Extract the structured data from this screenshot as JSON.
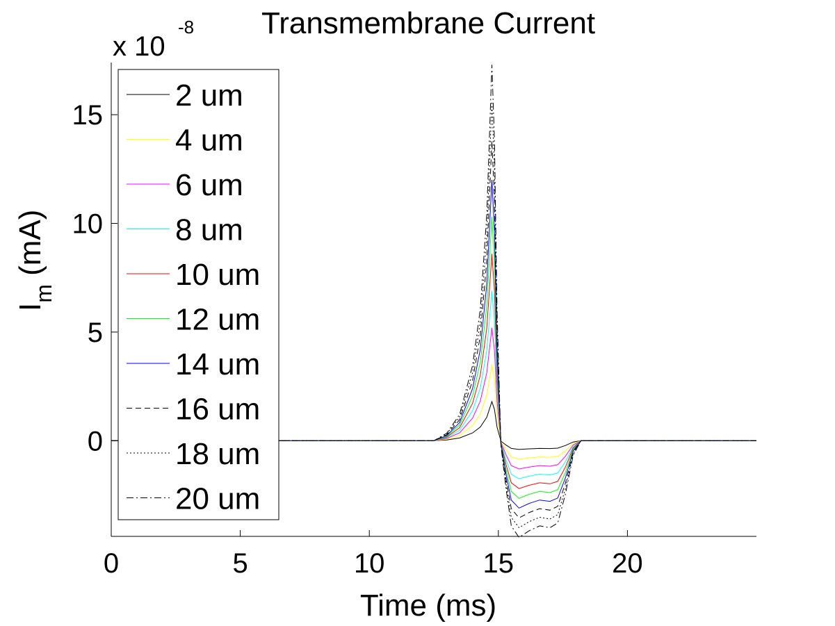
{
  "chart_data": {
    "type": "line",
    "title": "Transmembrane Current",
    "xlabel": "Time (ms)",
    "ylabel_main": "I",
    "ylabel_sub": "m",
    "ylabel_unit": " (mA)",
    "y_multiplier_base": "x 10",
    "y_multiplier_exp": "-8",
    "xlim": [
      0,
      25
    ],
    "ylim": [
      -4.4,
      17.4
    ],
    "x_ticks": [
      0,
      5,
      10,
      15,
      20
    ],
    "y_ticks": [
      0,
      5,
      10,
      15
    ],
    "grid": false,
    "legend_position": "top-left",
    "series": [
      {
        "name": "2 um",
        "color": "#000000",
        "dash": "",
        "peak": 1.8,
        "trough": -0.4
      },
      {
        "name": "4 um",
        "color": "#ffff00",
        "dash": "",
        "peak": 3.5,
        "trough": -0.85
      },
      {
        "name": "6 um",
        "color": "#ff00ff",
        "dash": "",
        "peak": 5.2,
        "trough": -1.3
      },
      {
        "name": "8 um",
        "color": "#00ffff",
        "dash": "",
        "peak": 6.9,
        "trough": -1.75
      },
      {
        "name": "10 um",
        "color": "#ff0000",
        "dash": "",
        "peak": 8.6,
        "trough": -2.2
      },
      {
        "name": "12 um",
        "color": "#00ff00",
        "dash": "",
        "peak": 10.3,
        "trough": -2.65
      },
      {
        "name": "14 um",
        "color": "#0000ff",
        "dash": "",
        "peak": 12.0,
        "trough": -3.1
      },
      {
        "name": "16 um",
        "color": "#000000",
        "dash": "8,5",
        "peak": 13.8,
        "trough": -3.55
      },
      {
        "name": "18 um",
        "color": "#000000",
        "dash": "2,3",
        "peak": 15.6,
        "trough": -4.0
      },
      {
        "name": "20 um",
        "color": "#000000",
        "dash": "10,4,2,4",
        "peak": 17.3,
        "trough": -4.45
      }
    ],
    "waveform": {
      "x": [
        0,
        12.5,
        13.0,
        13.5,
        14.0,
        14.3,
        14.55,
        14.75,
        14.85,
        14.95,
        15.1,
        15.3,
        15.5,
        15.8,
        16.2,
        16.6,
        17.0,
        17.3,
        17.6,
        17.9,
        18.2,
        25
      ],
      "shape": [
        0,
        0.0,
        0.02,
        0.07,
        0.2,
        0.35,
        0.6,
        1.0,
        0.8,
        0.35,
        -0.05,
        -0.5,
        -0.88,
        -1.0,
        -0.93,
        -0.88,
        -0.9,
        -0.85,
        -0.55,
        -0.15,
        0.0,
        0
      ]
    }
  }
}
